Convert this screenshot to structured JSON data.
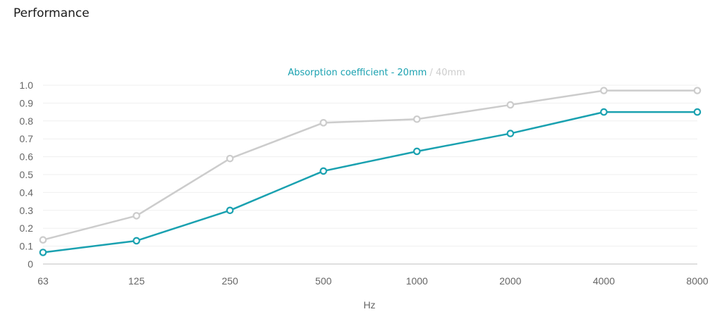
{
  "page": {
    "section_title": "Performance"
  },
  "chart_data": {
    "type": "line",
    "title": "",
    "xlabel": "Hz",
    "ylabel": "",
    "x_axis_type": "category",
    "categories": [
      "63",
      "125",
      "250",
      "500",
      "1000",
      "2000",
      "4000",
      "8000"
    ],
    "ylim": [
      0,
      1.0
    ],
    "y_ticks": [
      "0",
      "0.1",
      "0.2",
      "0.3",
      "0.4",
      "0.5",
      "0.6",
      "0.7",
      "0.8",
      "0.9",
      "1.0"
    ],
    "grid": true,
    "legend": {
      "placement": "top-center",
      "separator": " / "
    },
    "series": [
      {
        "name": "Absorption coefficient - 20mm",
        "color": "#1aa1b0",
        "values": [
          0.065,
          0.13,
          0.3,
          0.52,
          0.63,
          0.73,
          0.85,
          0.85
        ]
      },
      {
        "name": "40mm",
        "color": "#cccccc",
        "values": [
          0.135,
          0.27,
          0.59,
          0.79,
          0.81,
          0.89,
          0.97,
          0.97
        ]
      }
    ]
  }
}
